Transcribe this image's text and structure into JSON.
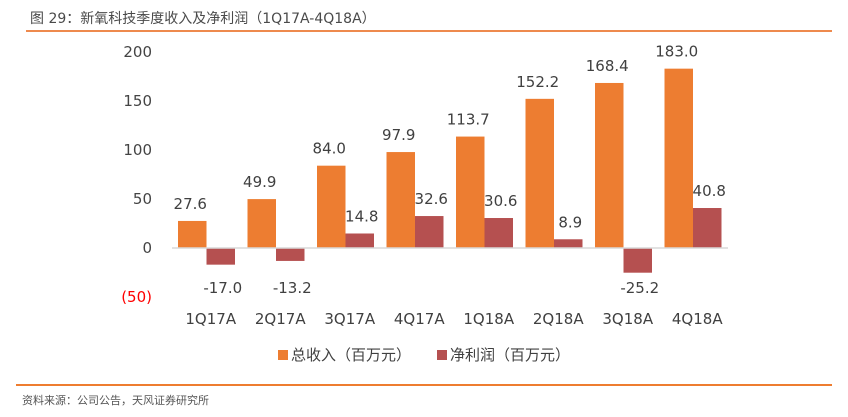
{
  "figure": {
    "title": "图 29：新氧科技季度收入及净利润（1Q17A-4Q18A）",
    "source": "资料来源：公司公告，天风证券研究所"
  },
  "colors": {
    "revenue": "#ed7d31",
    "net_profit": "#b55050",
    "negative_tick": "#ff0000",
    "rule": "#ee7d30"
  },
  "chart_data": {
    "type": "bar",
    "title": "新氧科技季度收入及净利润（1Q17A-4Q18A）",
    "xlabel": "",
    "ylabel": "",
    "categories": [
      "1Q17A",
      "2Q17A",
      "3Q17A",
      "4Q17A",
      "1Q18A",
      "2Q18A",
      "3Q18A",
      "4Q18A"
    ],
    "series": [
      {
        "name": "总收入（百万元）",
        "values": [
          27.6,
          49.9,
          84.0,
          97.9,
          113.7,
          152.2,
          168.4,
          183.0
        ],
        "labels": [
          "27.6",
          "49.9",
          "84.0",
          "97.9",
          "113.7",
          "152.2",
          "168.4",
          "183.0"
        ]
      },
      {
        "name": "净利润（百万元）",
        "values": [
          -17.0,
          -13.2,
          14.8,
          32.6,
          30.6,
          8.9,
          -25.2,
          40.8
        ],
        "labels": [
          "-17.0",
          "-13.2",
          "14.8",
          "32.6",
          "30.6",
          "8.9",
          "-25.2",
          "40.8"
        ]
      }
    ],
    "ylim": [
      -50,
      200
    ],
    "yticks": [
      200,
      150,
      100,
      50,
      0,
      -50
    ],
    "ytick_labels": [
      "200",
      "150",
      "100",
      "50",
      "0",
      "(50)"
    ],
    "grid": false,
    "legend": {
      "placement": "bottom",
      "entries": [
        "总收入（百万元）",
        "净利润（百万元）"
      ]
    }
  },
  "legend": {
    "revenue_label": "总收入（百万元）",
    "net_profit_label": "净利润（百万元）"
  }
}
